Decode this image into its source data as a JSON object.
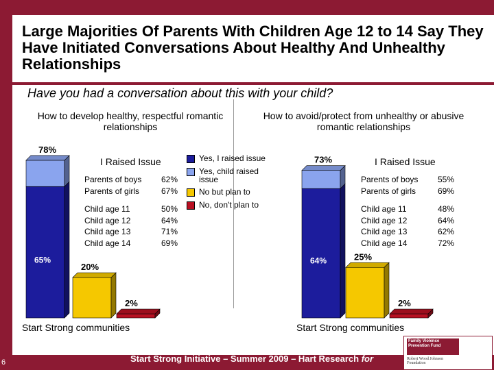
{
  "slide": {
    "title": "Large Majorities Of Parents With Children Age 12 to 14 Say They Have Initiated Conversations About Healthy And Unhealthy Relationships",
    "question": "Have you had a conversation about this with your child?",
    "page_number": "6",
    "footer_text": "Start Strong Initiative – Summer 2009 – Hart Research",
    "footer_for": "for",
    "logo_text_top": "Family Violence Prevention Fund",
    "logo_text_bottom": "Robert Wood Johnson Foundation"
  },
  "colors": {
    "frame": "#8c1a33",
    "raised_by_me": "#1c1c9c",
    "raised_by_child": "#8aa4ee",
    "plan_to": "#f5c800",
    "no_plan": "#b81022"
  },
  "legend": [
    {
      "label": "Yes, I raised issue",
      "color": "#1c1c9c"
    },
    {
      "label": "Yes, child raised issue",
      "color": "#8aa4ee"
    },
    {
      "label": "No but plan to",
      "color": "#f5c800"
    },
    {
      "label": "No, don't plan to",
      "color": "#b81022"
    }
  ],
  "panels": [
    {
      "heading": "How to develop healthy, respectful romantic relationships",
      "raised_title": "I Raised Issue",
      "community_label": "Start Strong communities",
      "breakdown_groups": [
        [
          {
            "label": "Parents of boys",
            "value": "62%"
          },
          {
            "label": "Parents of girls",
            "value": "67%"
          }
        ],
        [
          {
            "label": "Child age 11",
            "value": "50%"
          },
          {
            "label": "Child age 12",
            "value": "64%"
          },
          {
            "label": "Child age 13",
            "value": "71%"
          },
          {
            "label": "Child age 14",
            "value": "69%"
          }
        ]
      ]
    },
    {
      "heading": "How to avoid/protect from unhealthy or abusive romantic relationships",
      "raised_title": "I Raised Issue",
      "community_label": "Start Strong communities",
      "breakdown_groups": [
        [
          {
            "label": "Parents of boys",
            "value": "55%"
          },
          {
            "label": "Parents of girls",
            "value": "69%"
          }
        ],
        [
          {
            "label": "Child age 11",
            "value": "48%"
          },
          {
            "label": "Child age 12",
            "value": "64%"
          },
          {
            "label": "Child age 13",
            "value": "62%"
          },
          {
            "label": "Child age 14",
            "value": "72%"
          }
        ]
      ]
    }
  ],
  "chart_data": [
    {
      "type": "bar",
      "title": "How to develop healthy, respectful romantic relationships",
      "categories": [
        "Yes",
        "No but plan to",
        "No, don't plan to"
      ],
      "series": [
        {
          "name": "Yes, I raised issue",
          "values": [
            65,
            0,
            0
          ]
        },
        {
          "name": "Yes, child raised issue",
          "values": [
            13,
            0,
            0
          ]
        },
        {
          "name": "No but plan to",
          "values": [
            0,
            20,
            0
          ]
        },
        {
          "name": "No, don't plan to",
          "values": [
            0,
            0,
            2
          ]
        }
      ],
      "totals": [
        78,
        20,
        2
      ],
      "total_labels": [
        "78%",
        "20%",
        "2%"
      ],
      "segment_labels": [
        "65%"
      ],
      "ylim": [
        0,
        100
      ]
    },
    {
      "type": "bar",
      "title": "How to avoid/protect from unhealthy or abusive romantic relationships",
      "categories": [
        "Yes",
        "No but plan to",
        "No, don't plan to"
      ],
      "series": [
        {
          "name": "Yes, I raised issue",
          "values": [
            64,
            0,
            0
          ]
        },
        {
          "name": "Yes, child raised issue",
          "values": [
            9,
            0,
            0
          ]
        },
        {
          "name": "No but plan to",
          "values": [
            0,
            25,
            0
          ]
        },
        {
          "name": "No, don't plan to",
          "values": [
            0,
            0,
            2
          ]
        }
      ],
      "totals": [
        73,
        25,
        2
      ],
      "total_labels": [
        "73%",
        "25%",
        "2%"
      ],
      "segment_labels": [
        "64%"
      ],
      "ylim": [
        0,
        100
      ]
    }
  ]
}
